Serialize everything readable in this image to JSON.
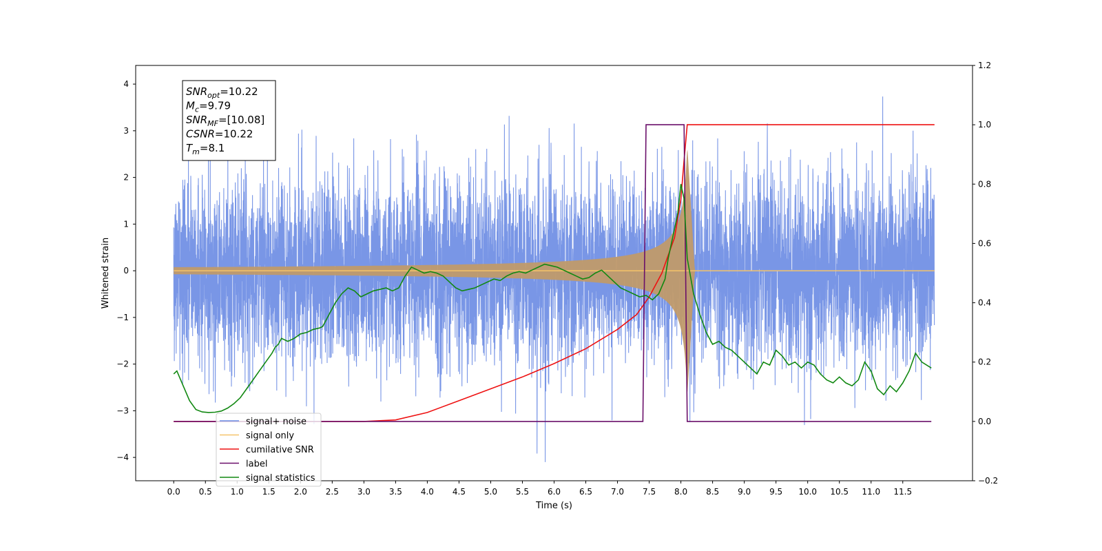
{
  "chart_data": {
    "type": "line",
    "xlabel": "Time (s)",
    "ylabel": "Whitened strain",
    "xlim": [
      -0.6,
      12.6
    ],
    "ylim": [
      -4.5,
      4.4
    ],
    "y2lim": [
      -0.2,
      1.2
    ],
    "x_ticks": [
      "0.0",
      "0.5",
      "1.0",
      "1.5",
      "2.0",
      "2.5",
      "3.0",
      "3.5",
      "4.0",
      "4.5",
      "5.0",
      "5.5",
      "6.0",
      "6.5",
      "7.0",
      "7.5",
      "8.0",
      "8.5",
      "9.0",
      "9.5",
      "10.0",
      "10.5",
      "11.0",
      "11.5"
    ],
    "y_ticks": [
      "4",
      "3",
      "2",
      "1",
      "0",
      "−1",
      "−2",
      "−3",
      "−4"
    ],
    "y2_ticks": [
      "1.2",
      "1.0",
      "0.8",
      "0.6",
      "0.4",
      "0.2",
      "0.0",
      "−0.2"
    ],
    "annotation": {
      "lines": [
        {
          "base": "SNR",
          "sub": "opt",
          "rest": "=10.22"
        },
        {
          "base": "M",
          "sub": "c",
          "rest": "=9.79"
        },
        {
          "base": "SNR",
          "sub": "MF",
          "rest": "=[10.08]"
        },
        {
          "base": "CSNR",
          "sub": "",
          "rest": "=10.22"
        },
        {
          "base": "T",
          "sub": "m",
          "rest": "=8.1"
        }
      ]
    },
    "legend": {
      "placement": "lower-left",
      "entries": [
        {
          "label": "signal+ noise",
          "color": "#6a8be3"
        },
        {
          "label": "signal only",
          "color": "#f5c36a"
        },
        {
          "label": "cumilative SNR",
          "color": "#ee1111"
        },
        {
          "label": "label",
          "color": "#6a0f6a"
        },
        {
          "label": "signal statistics",
          "color": "#118811"
        }
      ]
    },
    "series": [
      {
        "name": "signal+ noise",
        "axis": "left",
        "color": "#6a8be3",
        "fs": 512,
        "t_start": 0.0,
        "t_end": 12.0,
        "noise_sigma": 1.0,
        "visible_min": -4.1,
        "visible_max": 4.05
      },
      {
        "name": "signal only",
        "axis": "left",
        "color": "#f5c36a",
        "fill_color": "#c09a6a",
        "t_start": 0.0,
        "merger_time": 8.1,
        "envelope_at_merger": 2.7
      },
      {
        "name": "cumilative SNR",
        "axis": "right",
        "color": "#ee1111",
        "x": [
          0.0,
          2.5,
          3.0,
          3.5,
          4.0,
          4.5,
          5.0,
          5.5,
          6.0,
          6.5,
          7.0,
          7.3,
          7.5,
          7.7,
          7.9,
          8.0,
          8.05,
          8.1,
          12.0
        ],
        "y": [
          0.0,
          0.0,
          0.0,
          0.005,
          0.03,
          0.07,
          0.11,
          0.15,
          0.195,
          0.245,
          0.31,
          0.36,
          0.42,
          0.5,
          0.62,
          0.75,
          0.88,
          1.0,
          1.0
        ]
      },
      {
        "name": "label",
        "axis": "right",
        "color": "#6a0f6a",
        "x": [
          0.0,
          7.4,
          7.45,
          8.05,
          8.1,
          11.95
        ],
        "y": [
          0.0,
          0.0,
          1.0,
          1.0,
          0.0,
          0.0
        ]
      },
      {
        "name": "signal statistics",
        "axis": "right",
        "color": "#118811",
        "x": [
          0.0,
          0.05,
          0.15,
          0.25,
          0.35,
          0.45,
          0.55,
          0.65,
          0.75,
          0.85,
          0.95,
          1.05,
          1.15,
          1.25,
          1.35,
          1.45,
          1.55,
          1.6,
          1.65,
          1.7,
          1.8,
          1.9,
          2.0,
          2.1,
          2.2,
          2.3,
          2.35,
          2.45,
          2.55,
          2.65,
          2.75,
          2.85,
          2.95,
          3.05,
          3.15,
          3.25,
          3.35,
          3.45,
          3.55,
          3.65,
          3.75,
          3.85,
          3.95,
          4.05,
          4.15,
          4.25,
          4.35,
          4.45,
          4.55,
          4.65,
          4.75,
          4.85,
          4.95,
          5.05,
          5.15,
          5.25,
          5.35,
          5.45,
          5.55,
          5.65,
          5.75,
          5.85,
          5.95,
          6.05,
          6.15,
          6.25,
          6.35,
          6.45,
          6.55,
          6.65,
          6.75,
          6.85,
          6.95,
          7.05,
          7.15,
          7.25,
          7.35,
          7.45,
          7.55,
          7.65,
          7.75,
          7.8,
          7.85,
          7.95,
          8.0,
          8.05,
          8.1,
          8.2,
          8.3,
          8.4,
          8.5,
          8.6,
          8.7,
          8.8,
          8.9,
          9.0,
          9.1,
          9.2,
          9.3,
          9.4,
          9.5,
          9.6,
          9.7,
          9.8,
          9.9,
          10.0,
          10.1,
          10.2,
          10.3,
          10.4,
          10.5,
          10.6,
          10.7,
          10.8,
          10.9,
          11.0,
          11.1,
          11.2,
          11.3,
          11.4,
          11.5,
          11.6,
          11.7,
          11.8,
          11.95
        ],
        "y": [
          0.16,
          0.17,
          0.12,
          0.07,
          0.04,
          0.032,
          0.03,
          0.031,
          0.035,
          0.045,
          0.06,
          0.08,
          0.11,
          0.14,
          0.17,
          0.2,
          0.23,
          0.25,
          0.26,
          0.28,
          0.27,
          0.28,
          0.295,
          0.3,
          0.31,
          0.315,
          0.32,
          0.36,
          0.4,
          0.43,
          0.45,
          0.44,
          0.42,
          0.43,
          0.44,
          0.445,
          0.45,
          0.44,
          0.45,
          0.49,
          0.52,
          0.51,
          0.5,
          0.505,
          0.5,
          0.49,
          0.47,
          0.45,
          0.44,
          0.445,
          0.45,
          0.46,
          0.47,
          0.48,
          0.475,
          0.49,
          0.5,
          0.505,
          0.5,
          0.51,
          0.52,
          0.53,
          0.525,
          0.52,
          0.51,
          0.5,
          0.49,
          0.48,
          0.485,
          0.5,
          0.51,
          0.49,
          0.47,
          0.45,
          0.44,
          0.43,
          0.42,
          0.425,
          0.41,
          0.43,
          0.48,
          0.55,
          0.6,
          0.7,
          0.8,
          0.75,
          0.55,
          0.43,
          0.36,
          0.3,
          0.26,
          0.27,
          0.25,
          0.24,
          0.22,
          0.2,
          0.18,
          0.16,
          0.2,
          0.19,
          0.24,
          0.22,
          0.19,
          0.2,
          0.18,
          0.2,
          0.19,
          0.16,
          0.14,
          0.13,
          0.15,
          0.13,
          0.12,
          0.14,
          0.2,
          0.17,
          0.11,
          0.09,
          0.12,
          0.1,
          0.13,
          0.17,
          0.23,
          0.2,
          0.18
        ]
      }
    ]
  }
}
